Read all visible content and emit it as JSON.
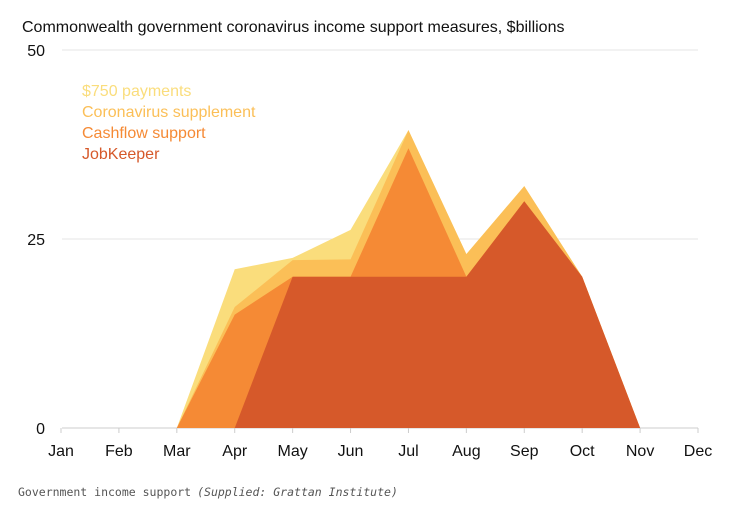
{
  "chart_data": {
    "type": "area",
    "stacked": true,
    "title": "Commonwealth government coronavirus income support measures, $billions",
    "xlabel": "",
    "ylabel": "",
    "categories": [
      "Jan",
      "Feb",
      "Mar",
      "Apr",
      "May",
      "Jun",
      "Jul",
      "Aug",
      "Sep",
      "Oct",
      "Nov",
      "Dec"
    ],
    "ylim": [
      0,
      50
    ],
    "yticks": [
      0,
      25,
      50
    ],
    "grid": true,
    "legend_placement": "top-left",
    "series": [
      {
        "name": "JobKeeper",
        "color": "#D6592A",
        "values": [
          null,
          null,
          null,
          0,
          20,
          20,
          20,
          20,
          30,
          20,
          0,
          null
        ]
      },
      {
        "name": "Cashflow support",
        "color": "#F58A35",
        "values": [
          null,
          null,
          0,
          15,
          0,
          0,
          17,
          0,
          0,
          0,
          0,
          null
        ]
      },
      {
        "name": "Coronavirus supplement",
        "color": "#FBBF57",
        "values": [
          null,
          null,
          0,
          1,
          2.2,
          2.3,
          2.4,
          3,
          2,
          0,
          0,
          null
        ]
      },
      {
        "name": "$750 payments",
        "color": "#FADD7C",
        "values": [
          null,
          null,
          0,
          5,
          0.3,
          3.9,
          0,
          0,
          0,
          0,
          0,
          null
        ]
      }
    ]
  },
  "caption": {
    "text": "Government income support",
    "source": "(Supplied: Grattan Institute)"
  }
}
